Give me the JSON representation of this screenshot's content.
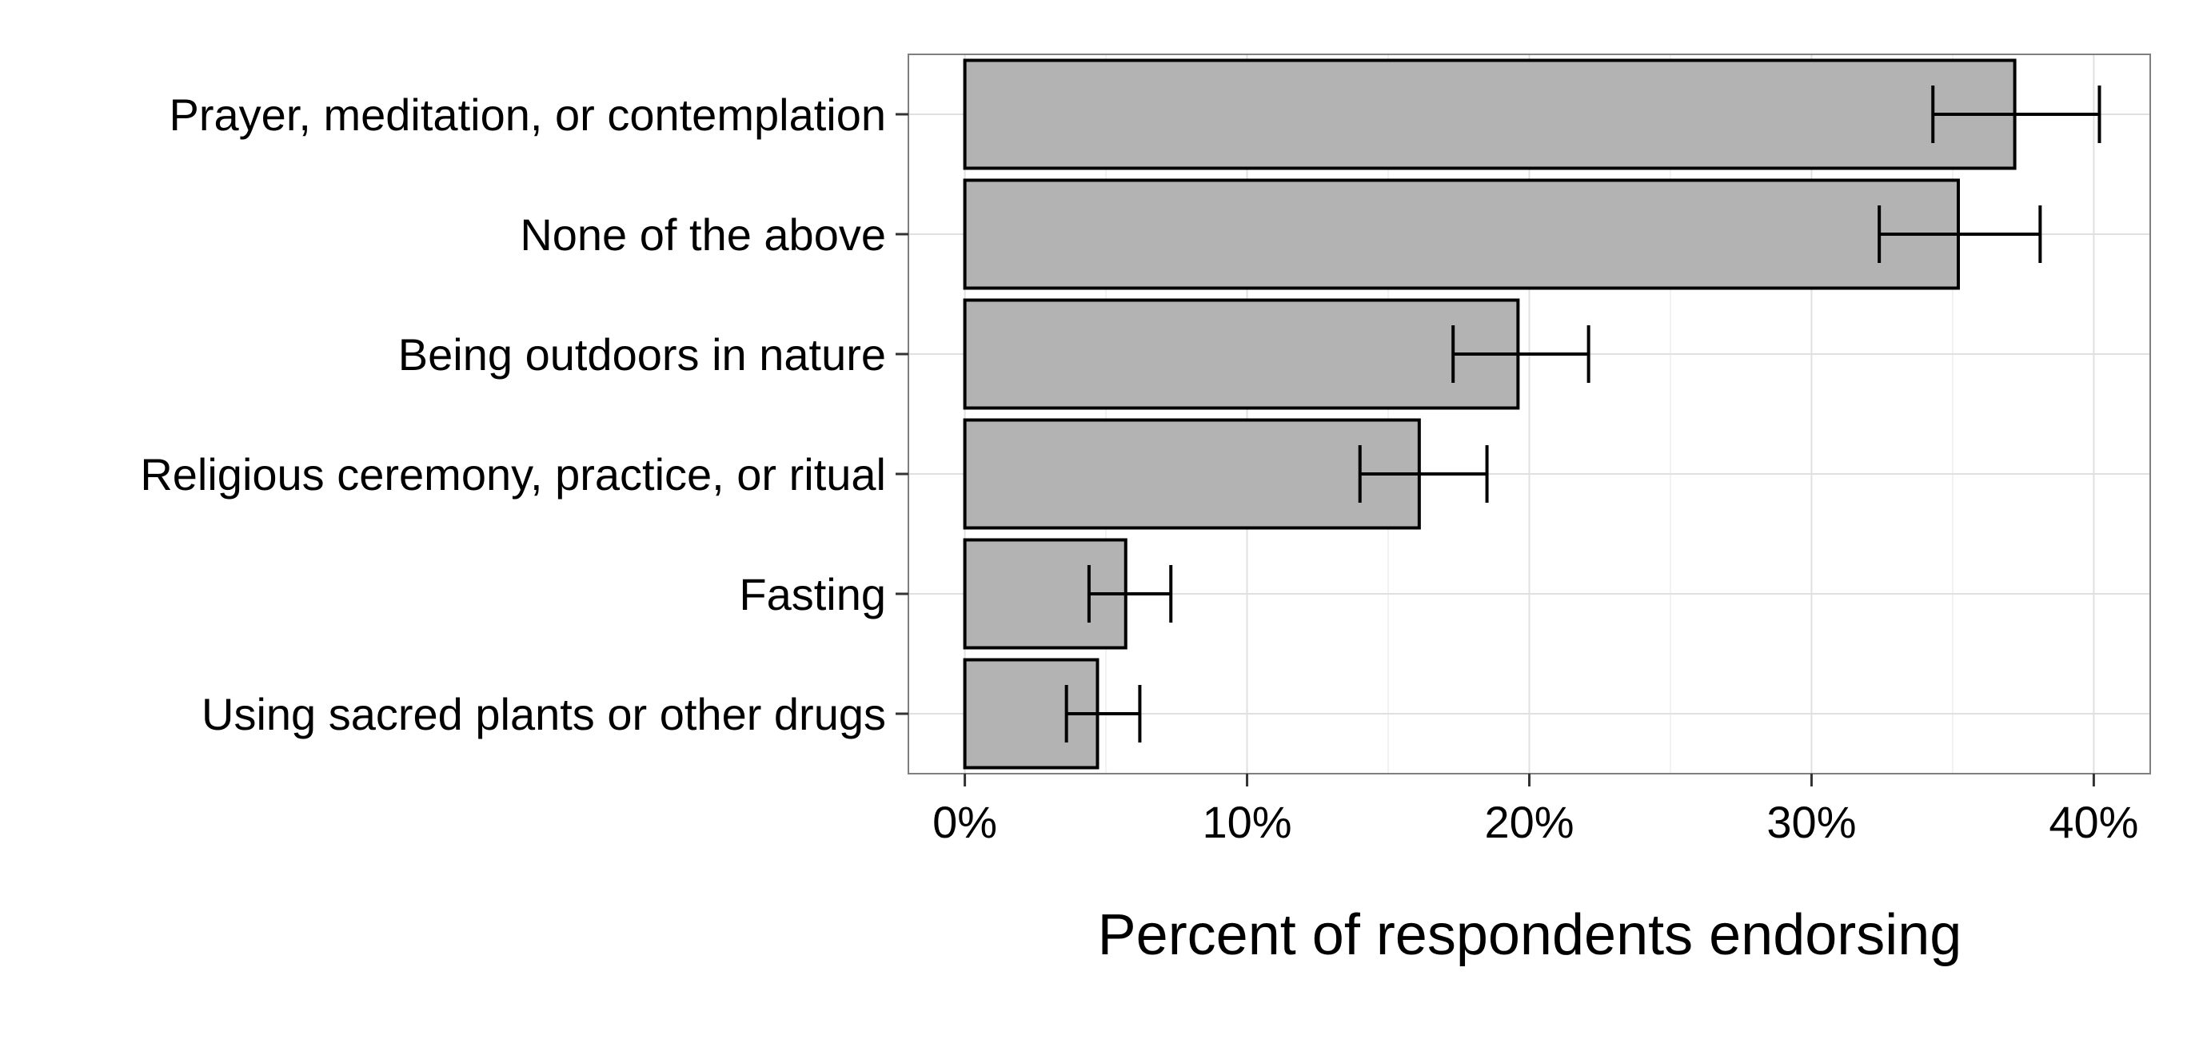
{
  "chart_data": {
    "type": "bar",
    "orientation": "horizontal",
    "categories": [
      "Prayer, meditation, or contemplation",
      "None of the above",
      "Being outdoors in nature",
      "Religious ceremony, practice, or ritual",
      "Fasting",
      "Using sacred plants or other drugs"
    ],
    "values": [
      37.2,
      35.2,
      19.6,
      16.1,
      5.7,
      4.7
    ],
    "error_low": [
      34.3,
      32.4,
      17.3,
      14.0,
      4.4,
      3.6
    ],
    "error_high": [
      40.2,
      38.1,
      22.1,
      18.5,
      7.3,
      6.2
    ],
    "xlabel": "Percent of respondents endorsing",
    "ylabel": "",
    "title": "",
    "xlim": [
      -2,
      42
    ],
    "xticks": [
      0,
      10,
      20,
      30,
      40
    ],
    "xtick_labels": [
      "0%",
      "10%",
      "20%",
      "30%",
      "40%"
    ],
    "grid": true,
    "legend": "none",
    "colors": {
      "bar_fill": "#b3b3b3",
      "bar_stroke": "#000000",
      "panel_border": "#7f7f7f",
      "grid_major": "#e0e0e0",
      "grid_minor": "#f2f2f2"
    }
  }
}
